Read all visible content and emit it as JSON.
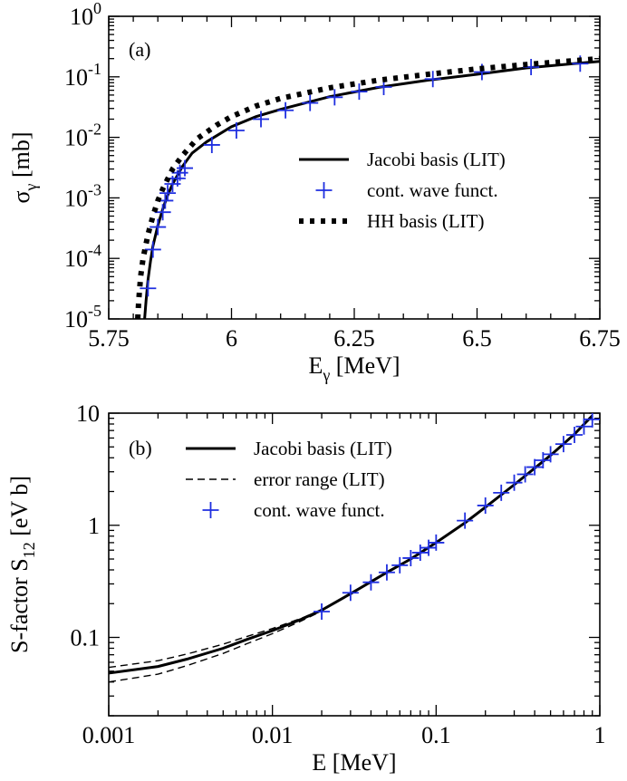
{
  "chart_data": [
    {
      "panel": "(a)",
      "type": "line",
      "xlabel": "E",
      "xlabel_sub": "γ",
      "xlabel_unit": " [MeV]",
      "ylabel": "σ",
      "ylabel_sub": "γ",
      "ylabel_unit": " [mb]",
      "xscale": "linear",
      "yscale": "log",
      "xlim": [
        5.75,
        6.75
      ],
      "ylim": [
        1e-05,
        1
      ],
      "x_ticks": [
        5.75,
        6,
        6.25,
        6.5,
        6.75
      ],
      "x_tick_labels": [
        "5.75",
        "6",
        "6.25",
        "6.5",
        "6.75"
      ],
      "y_ticks": [
        1e-05,
        0.0001,
        0.001,
        0.01,
        0.1,
        1
      ],
      "y_tick_labels": [
        {
          "base": "10",
          "exp": "-5"
        },
        {
          "base": "10",
          "exp": "-4"
        },
        {
          "base": "10",
          "exp": "-3"
        },
        {
          "base": "10",
          "exp": "-2"
        },
        {
          "base": "10",
          "exp": "-1"
        },
        {
          "base": "10",
          "exp": "0"
        }
      ],
      "legend_position": "center-right",
      "series": [
        {
          "name": "Jacobi basis (LIT)",
          "style": "solid",
          "color": "#000000",
          "x": [
            5.823,
            5.826,
            5.83,
            5.835,
            5.84,
            5.85,
            5.86,
            5.87,
            5.88,
            5.9,
            5.92,
            5.95,
            6.0,
            6.05,
            6.1,
            6.2,
            6.3,
            6.4,
            6.5,
            6.6,
            6.75
          ],
          "y": [
            1e-05,
            2e-05,
            4.5e-05,
            9e-05,
            0.00016,
            0.00035,
            0.00065,
            0.0011,
            0.0017,
            0.0033,
            0.0055,
            0.0085,
            0.015,
            0.022,
            0.029,
            0.047,
            0.067,
            0.088,
            0.11,
            0.14,
            0.18
          ]
        },
        {
          "name": "cont. wave funct.",
          "style": "marker-plus",
          "color": "#1f2fe0",
          "x": [
            5.83,
            5.84,
            5.85,
            5.86,
            5.865,
            5.87,
            5.88,
            5.89,
            5.895,
            5.905,
            5.96,
            6.01,
            6.06,
            6.11,
            6.16,
            6.21,
            6.26,
            6.31,
            6.41,
            6.51,
            6.61,
            6.71
          ],
          "y": [
            3.2e-05,
            0.00014,
            0.00033,
            0.00058,
            0.0009,
            0.0012,
            0.0017,
            0.0021,
            0.0026,
            0.0031,
            0.0075,
            0.013,
            0.02,
            0.028,
            0.037,
            0.046,
            0.057,
            0.068,
            0.092,
            0.12,
            0.145,
            0.165
          ]
        },
        {
          "name": "HH basis (LIT)",
          "style": "dotted",
          "color": "#000000",
          "x": [
            5.809,
            5.811,
            5.815,
            5.82,
            5.83,
            5.84,
            5.85,
            5.86,
            5.88,
            5.9,
            5.93,
            5.97,
            6.0,
            6.05,
            6.1,
            6.2,
            6.3,
            6.4,
            6.5,
            6.6,
            6.75
          ],
          "y": [
            1e-05,
            2e-05,
            5e-05,
            0.0001,
            0.00025,
            0.0005,
            0.0009,
            0.0014,
            0.003,
            0.005,
            0.0095,
            0.016,
            0.022,
            0.033,
            0.044,
            0.066,
            0.088,
            0.11,
            0.135,
            0.16,
            0.2
          ]
        }
      ]
    },
    {
      "panel": "(b)",
      "type": "line",
      "xlabel": "E [MeV]",
      "ylabel": "S-factor S",
      "ylabel_sub": "12",
      "ylabel_unit": " [eV b]",
      "xscale": "log",
      "yscale": "log",
      "xlim": [
        0.001,
        1
      ],
      "ylim": [
        0.02,
        10
      ],
      "x_ticks": [
        0.001,
        0.01,
        0.1,
        1
      ],
      "x_tick_labels": [
        "0.001",
        "0.01",
        "0.1",
        "1"
      ],
      "y_ticks": [
        0.1,
        1,
        10
      ],
      "y_tick_labels": [
        "0.1",
        "1",
        "10"
      ],
      "legend_position": "top-left",
      "series": [
        {
          "name": "Jacobi basis (LIT)",
          "style": "solid",
          "color": "#000000",
          "x": [
            0.001,
            0.002,
            0.003,
            0.005,
            0.007,
            0.01,
            0.015,
            0.02,
            0.03,
            0.05,
            0.07,
            0.1,
            0.15,
            0.2,
            0.3,
            0.5,
            0.7,
            0.9
          ],
          "y": [
            0.048,
            0.055,
            0.064,
            0.08,
            0.096,
            0.115,
            0.145,
            0.175,
            0.245,
            0.38,
            0.5,
            0.7,
            1.05,
            1.45,
            2.3,
            4.2,
            6.5,
            9.5
          ]
        },
        {
          "name": "error range (LIT)",
          "style": "dashed",
          "color": "#000000",
          "x": [
            0.001,
            0.002,
            0.003,
            0.005,
            0.007,
            0.01,
            0.015,
            0.02
          ],
          "y": [
            0.054,
            0.062,
            0.071,
            0.087,
            0.102,
            0.12,
            0.148,
            0.177
          ],
          "y_lower": [
            0.04,
            0.047,
            0.056,
            0.072,
            0.088,
            0.108,
            0.14,
            0.172
          ]
        },
        {
          "name": "cont. wave funct.",
          "style": "marker-plus",
          "color": "#1f2fe0",
          "x": [
            0.02,
            0.03,
            0.04,
            0.05,
            0.06,
            0.07,
            0.08,
            0.09,
            0.1,
            0.15,
            0.2,
            0.25,
            0.3,
            0.35,
            0.4,
            0.45,
            0.5,
            0.6,
            0.7,
            0.8,
            0.9
          ],
          "y": [
            0.17,
            0.25,
            0.31,
            0.38,
            0.44,
            0.51,
            0.57,
            0.63,
            0.7,
            1.1,
            1.5,
            1.95,
            2.4,
            2.85,
            3.3,
            3.8,
            4.3,
            5.3,
            6.4,
            7.6,
            8.8
          ]
        }
      ]
    }
  ]
}
